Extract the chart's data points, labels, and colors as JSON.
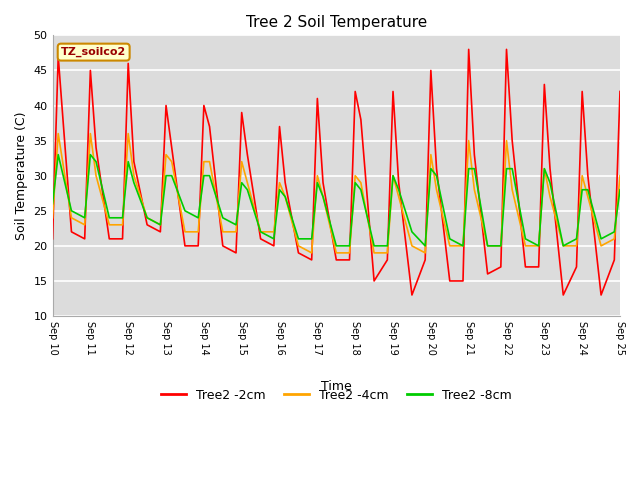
{
  "title": "Tree 2 Soil Temperature",
  "xlabel": "Time",
  "ylabel": "Soil Temperature (C)",
  "ylim": [
    10,
    50
  ],
  "background_color": "#dcdcdc",
  "annotation_text": "TZ_soilco2",
  "annotation_bg": "#ffffcc",
  "annotation_border": "#cc8800",
  "xtick_labels": [
    "Sep 10",
    "Sep 11",
    "Sep 12",
    "Sep 13",
    "Sep 14",
    "Sep 15",
    "Sep 16",
    "Sep 17",
    "Sep 18",
    "Sep 19",
    "Sep 20",
    "Sep 21",
    "Sep 22",
    "Sep 23",
    "Sep 24",
    "Sep 25"
  ],
  "ytick_values": [
    10,
    15,
    20,
    25,
    30,
    35,
    40,
    45,
    50
  ],
  "legend_entries": [
    "Tree2 -2cm",
    "Tree2 -4cm",
    "Tree2 -8cm"
  ],
  "legend_colors": [
    "#ff0000",
    "#ffa500",
    "#00cc00"
  ],
  "series_colors": [
    "#ff0000",
    "#ffa500",
    "#00cc00"
  ],
  "series_linewidths": [
    1.2,
    1.2,
    1.2
  ],
  "red_data_x": [
    0.0,
    0.15,
    0.5,
    0.85,
    1.0,
    1.15,
    1.5,
    1.85,
    2.0,
    2.15,
    2.5,
    2.85,
    3.0,
    3.15,
    3.5,
    3.85,
    4.0,
    4.15,
    4.5,
    4.85,
    5.0,
    5.15,
    5.5,
    5.85,
    6.0,
    6.15,
    6.5,
    6.85,
    7.0,
    7.15,
    7.5,
    7.85,
    8.0,
    8.15,
    8.5,
    8.85,
    9.0,
    9.15,
    9.5,
    9.85,
    10.0,
    10.15,
    10.5,
    10.85,
    11.0,
    11.15,
    11.5,
    11.85,
    12.0,
    12.15,
    12.5,
    12.85,
    13.0,
    13.15,
    13.5,
    13.85,
    14.0,
    14.15,
    14.5,
    14.85,
    15.0
  ],
  "red_data_y": [
    21,
    47,
    22,
    21,
    45,
    34,
    21,
    21,
    46,
    32,
    23,
    22,
    40,
    34,
    20,
    20,
    40,
    37,
    20,
    19,
    39,
    33,
    21,
    20,
    37,
    29,
    19,
    18,
    41,
    29,
    18,
    18,
    42,
    38,
    15,
    18,
    42,
    29,
    13,
    18,
    45,
    31,
    15,
    15,
    48,
    33,
    16,
    17,
    48,
    35,
    17,
    17,
    43,
    31,
    13,
    17,
    42,
    30,
    13,
    18,
    42
  ],
  "orange_data_x": [
    0.0,
    0.15,
    0.5,
    0.85,
    1.0,
    1.15,
    1.5,
    1.85,
    2.0,
    2.15,
    2.5,
    2.85,
    3.0,
    3.15,
    3.5,
    3.85,
    4.0,
    4.15,
    4.5,
    4.85,
    5.0,
    5.15,
    5.5,
    5.85,
    6.0,
    6.15,
    6.5,
    6.85,
    7.0,
    7.15,
    7.5,
    7.85,
    8.0,
    8.15,
    8.5,
    8.85,
    9.0,
    9.15,
    9.5,
    9.85,
    10.0,
    10.15,
    10.5,
    10.85,
    11.0,
    11.15,
    11.5,
    11.85,
    12.0,
    12.15,
    12.5,
    12.85,
    13.0,
    13.15,
    13.5,
    13.85,
    14.0,
    14.15,
    14.5,
    14.85,
    15.0
  ],
  "orange_data_y": [
    24,
    36,
    24,
    23,
    36,
    30,
    23,
    23,
    36,
    30,
    24,
    23,
    33,
    32,
    22,
    22,
    32,
    32,
    22,
    22,
    32,
    29,
    22,
    22,
    29,
    27,
    20,
    19,
    30,
    27,
    19,
    19,
    30,
    29,
    19,
    19,
    30,
    27,
    20,
    19,
    33,
    28,
    20,
    20,
    35,
    28,
    20,
    20,
    35,
    28,
    20,
    20,
    31,
    27,
    20,
    20,
    30,
    27,
    20,
    21,
    30
  ],
  "green_data_x": [
    0.0,
    0.15,
    0.5,
    0.85,
    1.0,
    1.15,
    1.5,
    1.85,
    2.0,
    2.15,
    2.5,
    2.85,
    3.0,
    3.15,
    3.5,
    3.85,
    4.0,
    4.15,
    4.5,
    4.85,
    5.0,
    5.15,
    5.5,
    5.85,
    6.0,
    6.15,
    6.5,
    6.85,
    7.0,
    7.15,
    7.5,
    7.85,
    8.0,
    8.15,
    8.5,
    8.85,
    9.0,
    9.15,
    9.5,
    9.85,
    10.0,
    10.15,
    10.5,
    10.85,
    11.0,
    11.15,
    11.5,
    11.85,
    12.0,
    12.15,
    12.5,
    12.85,
    13.0,
    13.15,
    13.5,
    13.85,
    14.0,
    14.15,
    14.5,
    14.85,
    15.0
  ],
  "green_data_y": [
    26,
    33,
    25,
    24,
    33,
    32,
    24,
    24,
    32,
    29,
    24,
    23,
    30,
    30,
    25,
    24,
    30,
    30,
    24,
    23,
    29,
    28,
    22,
    21,
    28,
    27,
    21,
    21,
    29,
    27,
    20,
    20,
    29,
    28,
    20,
    20,
    30,
    28,
    22,
    20,
    31,
    30,
    21,
    20,
    31,
    31,
    20,
    20,
    31,
    31,
    21,
    20,
    31,
    29,
    20,
    21,
    28,
    28,
    21,
    22,
    28
  ]
}
